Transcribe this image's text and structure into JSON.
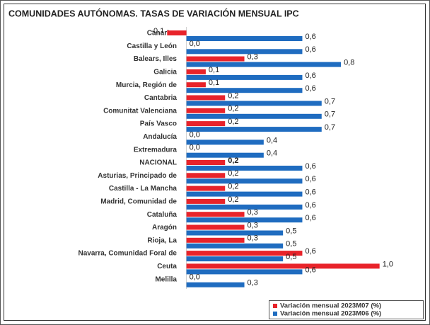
{
  "chart_data": {
    "type": "hbar",
    "title": "COMUNIDADES AUTÓNOMAS. TASAS DE VARIACIÓN MENSUAL IPC",
    "categories": [
      "Canarias",
      "Castilla y León",
      "Balears, Illes",
      "Galicia",
      "Murcia, Región de",
      "Cantabria",
      "Comunitat Valenciana",
      "País Vasco",
      "Andalucía",
      "Extremadura",
      "NACIONAL",
      "Asturias, Principado de",
      "Castilla - La Mancha",
      "Madrid, Comunidad de",
      "Cataluña",
      "Aragón",
      "Rioja, La",
      "Navarra, Comunidad Foral de",
      "Ceuta",
      "Melilla"
    ],
    "series": [
      {
        "name": "Variación mensual 2023M07 (%)",
        "color": "#e8232a",
        "values": [
          -0.1,
          0.0,
          0.3,
          0.1,
          0.1,
          0.2,
          0.2,
          0.2,
          0.0,
          0.0,
          0.2,
          0.2,
          0.2,
          0.2,
          0.3,
          0.3,
          0.3,
          0.6,
          1.0,
          0.0
        ],
        "value_labels": [
          "-0,1",
          "0,0",
          "0,3",
          "0,1",
          "0,1",
          "0,2",
          "0,2",
          "0,2",
          "0,0",
          "0,0",
          "0,2",
          "0,2",
          "0,2",
          "0,2",
          "0,3",
          "0,3",
          "0,3",
          "0,6",
          "1,0",
          "0,0"
        ]
      },
      {
        "name": "Variación mensual 2023M06 (%)",
        "color": "#1f6cc0",
        "values": [
          0.6,
          0.6,
          0.8,
          0.6,
          0.6,
          0.7,
          0.7,
          0.7,
          0.4,
          0.4,
          0.6,
          0.6,
          0.6,
          0.6,
          0.6,
          0.5,
          0.5,
          0.5,
          0.6,
          0.3
        ],
        "value_labels": [
          "0,6",
          "0,6",
          "0,8",
          "0,6",
          "0,6",
          "0,7",
          "0,7",
          "0,7",
          "0,4",
          "0,4",
          "0,6",
          "0,6",
          "0,6",
          "0,6",
          "0,6",
          "0,5",
          "0,5",
          "0,5",
          "0,6",
          "0,3"
        ]
      }
    ],
    "xlim": [
      -0.2,
      1.1
    ],
    "legend": "lower right"
  }
}
